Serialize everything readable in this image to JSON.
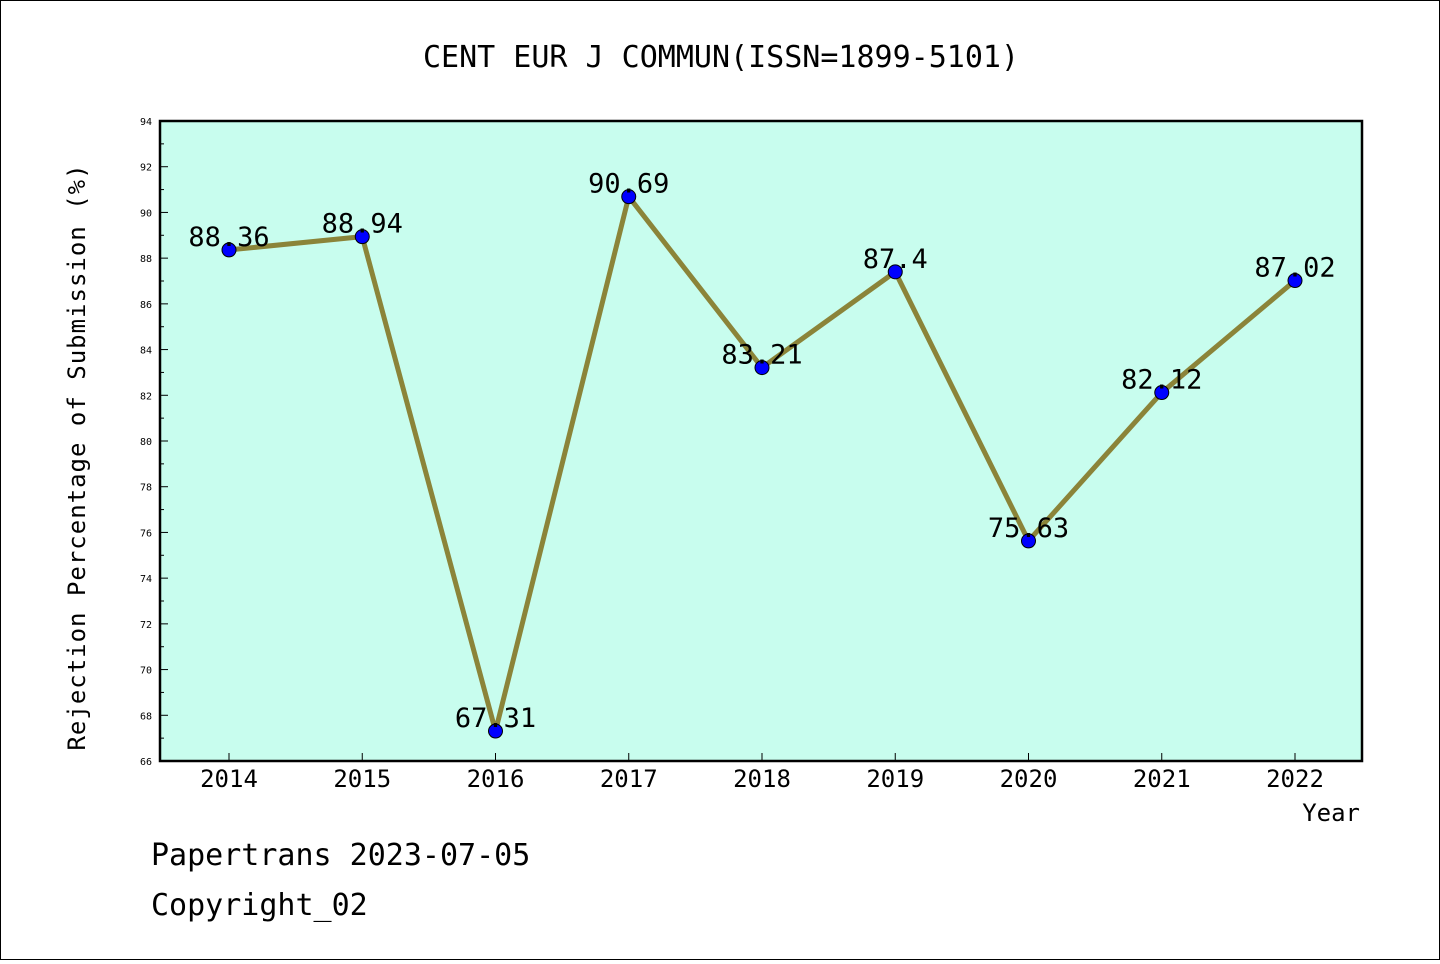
{
  "chart_data": {
    "type": "line",
    "title": "CENT EUR J COMMUN(ISSN=1899-5101)",
    "xlabel": "Year",
    "ylabel": "Rejection Percentage of Submission (%)",
    "categories": [
      "2014",
      "2015",
      "2016",
      "2017",
      "2018",
      "2019",
      "2020",
      "2021",
      "2022"
    ],
    "values": [
      88.36,
      88.94,
      67.31,
      90.69,
      83.21,
      87.4,
      75.63,
      82.12,
      87.02
    ],
    "value_labels": [
      "88.36",
      "88.94",
      "67.31",
      "90.69",
      "83.21",
      "87.4",
      "75.63",
      "82.12",
      "87.02"
    ],
    "ylim": [
      66,
      94
    ],
    "yticks": [
      "66",
      "68",
      "70",
      "72",
      "74",
      "76",
      "78",
      "80",
      "82",
      "84",
      "86",
      "88",
      "90",
      "92",
      "94"
    ],
    "grid": false,
    "colors": {
      "plot_background": "#c8fdee",
      "line": "#8b8439",
      "marker": "#0000ff"
    }
  },
  "footer": {
    "line1": "Papertrans 2023-07-05",
    "line2": "Copyright_02"
  }
}
